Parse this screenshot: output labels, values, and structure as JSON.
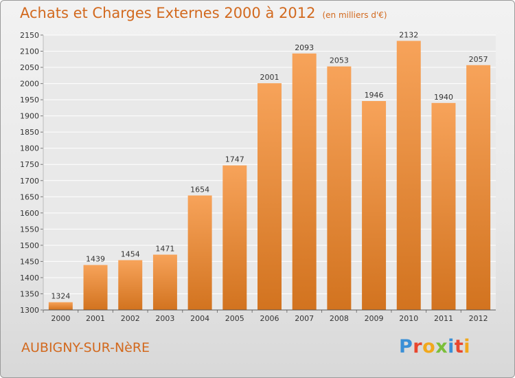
{
  "header": {
    "title": "Achats et Charges Externes 2000 à 2012",
    "subtitle": "(en milliers d'€)"
  },
  "footer": {
    "town": "AUBIGNY-SUR-NèRE",
    "logo_letters": [
      "P",
      "r",
      "o",
      "x",
      "i",
      "t",
      "i"
    ],
    "logo_colors": [
      "#3a8fd6",
      "#e8462e",
      "#f1a81c",
      "#7bbf3a",
      "#3a8fd6",
      "#e8462e",
      "#f1a81c"
    ]
  },
  "chart_data": {
    "type": "bar",
    "title": "Achats et Charges Externes 2000 à 2012",
    "subtitle": "(en milliers d'€)",
    "categories": [
      "2000",
      "2001",
      "2002",
      "2003",
      "2004",
      "2005",
      "2006",
      "2007",
      "2008",
      "2009",
      "2010",
      "2011",
      "2012"
    ],
    "values": [
      1324,
      1439,
      1454,
      1471,
      1654,
      1747,
      2001,
      2093,
      2053,
      1946,
      2132,
      1940,
      2057
    ],
    "ylim": [
      1300,
      2150
    ],
    "yticks": [
      1300,
      1350,
      1400,
      1450,
      1500,
      1550,
      1600,
      1650,
      1700,
      1750,
      1800,
      1850,
      1900,
      1950,
      2000,
      2050,
      2100,
      2150
    ],
    "grid": true,
    "legend": "none",
    "bar_color_top": "#f7a35a",
    "bar_color_bottom": "#d2731f"
  }
}
